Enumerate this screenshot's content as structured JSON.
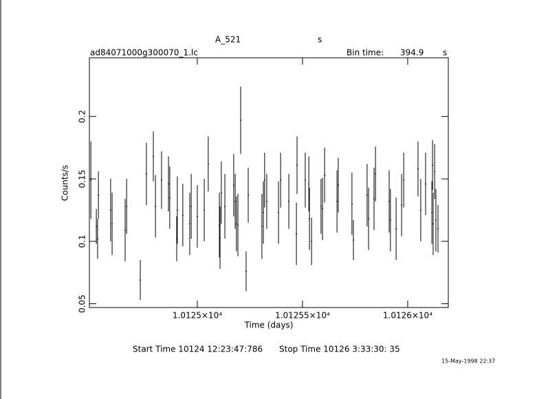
{
  "chart_data": {
    "type": "errorbar",
    "title": "A_521",
    "title_unit": "s",
    "subtitle": "ad84071000g300070_1.lc",
    "bin_time_label": "Bin time:",
    "bin_time": 394.9,
    "bin_time_unit": "s",
    "xlabel": "Time (days)",
    "ylabel": "Counts/s",
    "start_time": "Start Time 10124 12:23:47:786",
    "stop_time": "Stop Time 10126  3:33:30: 35",
    "date": "15-May-1998 22:37",
    "xlim": [
      10124.487,
      10126.193
    ],
    "ylim": [
      0.047,
      0.247
    ],
    "xticks": [
      {
        "value": 10125,
        "label": "1.0125×10⁴"
      },
      {
        "value": 10125.5,
        "label": "1.01255×10⁴"
      },
      {
        "value": 10126,
        "label": "1.0126×10⁴"
      }
    ],
    "yticks": [
      0.05,
      0.1,
      0.15,
      0.2
    ],
    "color": "#000000",
    "series": [
      {
        "name": "ad84071000g300070_1.lc",
        "x": [
          10124.494,
          10124.52,
          10124.526,
          10124.53,
          10124.588,
          10124.595,
          10124.657,
          10124.664,
          10124.729,
          10124.758,
          10124.791,
          10124.801,
          10124.83,
          10124.863,
          10124.869,
          10124.902,
          10124.905,
          10124.931,
          10124.964,
          10124.971,
          10125.0,
          10125.033,
          10125.052,
          10125.105,
          10125.108,
          10125.114,
          10125.131,
          10125.173,
          10125.18,
          10125.186,
          10125.193,
          10125.206,
          10125.232,
          10125.242,
          10125.307,
          10125.314,
          10125.32,
          10125.33,
          10125.386,
          10125.396,
          10125.435,
          10125.471,
          10125.474,
          10125.513,
          10125.53,
          10125.533,
          10125.543,
          10125.588,
          10125.595,
          10125.605,
          10125.664,
          10125.67,
          10125.735,
          10125.742,
          10125.807,
          10125.814,
          10125.84,
          10125.847,
          10125.912,
          10125.918,
          10125.945,
          10125.971,
          10125.981,
          10126.049,
          10126.062,
          10126.085,
          10126.115,
          10126.118,
          10126.121,
          10126.128,
          10126.134,
          10126.144
        ],
        "values": [
          0.149,
          0.112,
          0.102,
          0.137,
          0.125,
          0.114,
          0.109,
          0.128,
          0.069,
          0.154,
          0.168,
          0.128,
          0.149,
          0.146,
          0.135,
          0.102,
          0.125,
          0.121,
          0.114,
          0.128,
          0.12,
          0.125,
          0.162,
          0.113,
          0.103,
          0.139,
          0.128,
          0.145,
          0.132,
          0.114,
          0.113,
          0.197,
          0.076,
          0.137,
          0.112,
          0.123,
          0.149,
          0.132,
          0.123,
          0.149,
          0.132,
          0.106,
          0.161,
          0.149,
          0.146,
          0.118,
          0.1,
          0.128,
          0.126,
          0.153,
          0.132,
          0.145,
          0.13,
          0.101,
          0.137,
          0.118,
          0.134,
          0.154,
          0.132,
          0.117,
          0.11,
          0.129,
          0.149,
          0.158,
          0.125,
          0.146,
          0.123,
          0.161,
          0.114,
          0.156,
          0.117,
          0.11
        ],
        "errors": [
          0.031,
          0.014,
          0.016,
          0.019,
          0.025,
          0.025,
          0.025,
          0.022,
          0.016,
          0.025,
          0.02,
          0.025,
          0.023,
          0.022,
          0.025,
          0.018,
          0.027,
          0.025,
          0.025,
          0.026,
          0.025,
          0.025,
          0.022,
          0.026,
          0.025,
          0.025,
          0.026,
          0.025,
          0.022,
          0.022,
          0.025,
          0.027,
          0.016,
          0.022,
          0.026,
          0.025,
          0.022,
          0.022,
          0.025,
          0.022,
          0.022,
          0.025,
          0.023,
          0.022,
          0.022,
          0.025,
          0.019,
          0.022,
          0.025,
          0.022,
          0.025,
          0.022,
          0.025,
          0.016,
          0.025,
          0.025,
          0.025,
          0.022,
          0.025,
          0.025,
          0.025,
          0.025,
          0.022,
          0.022,
          0.025,
          0.025,
          0.025,
          0.02,
          0.025,
          0.022,
          0.025,
          0.019
        ]
      }
    ]
  }
}
